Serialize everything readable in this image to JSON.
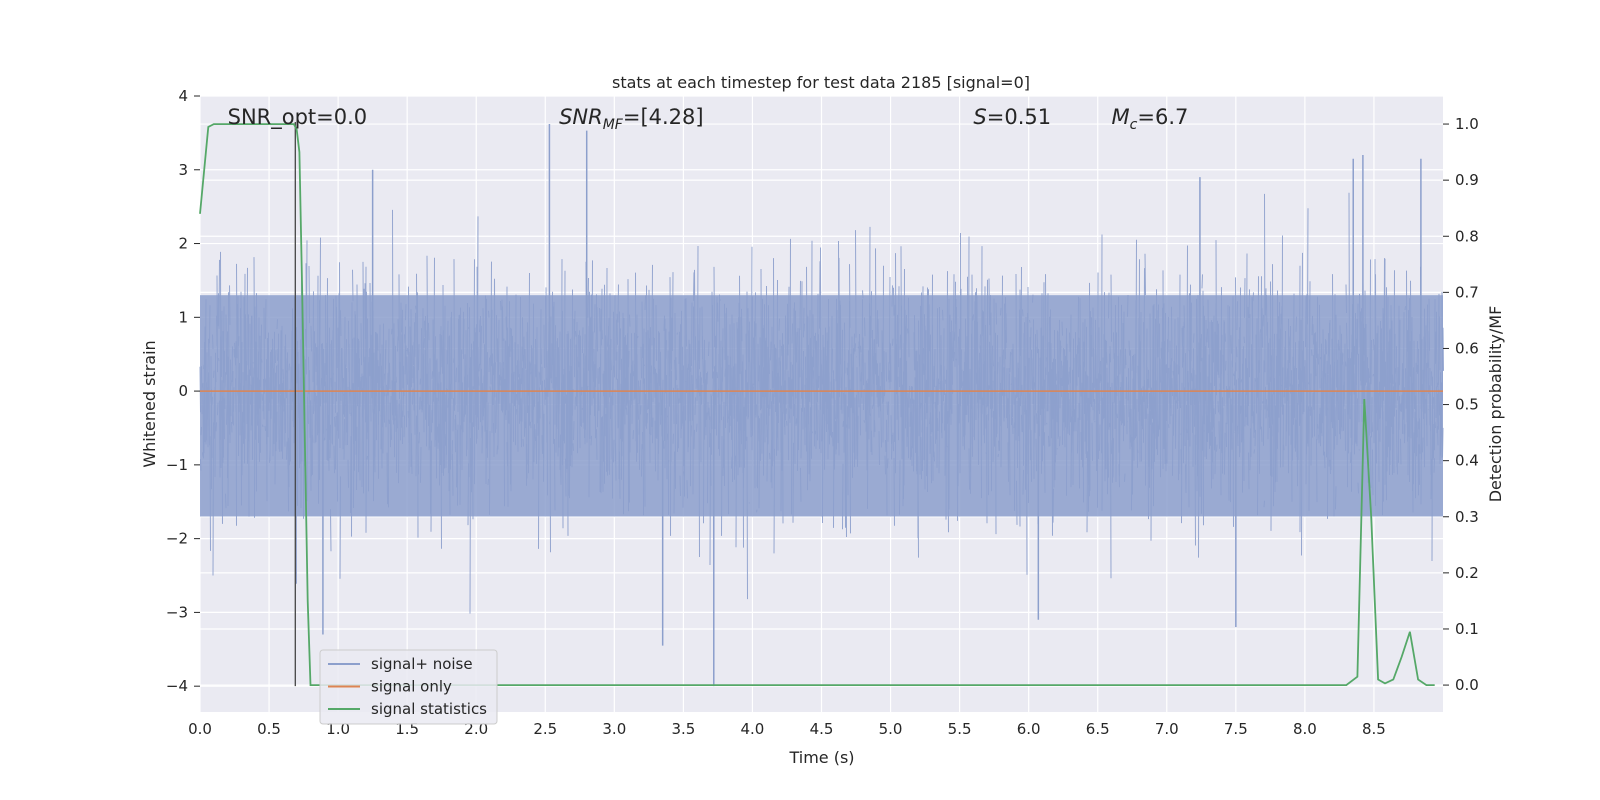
{
  "chart_data": {
    "type": "line",
    "title": "stats at each timestep for test data 2185 [signal=0]",
    "xlabel": "Time (s)",
    "ylabel": "Whitened strain",
    "y2label": "Detection probability/MF",
    "xlim": [
      0.0,
      9.0
    ],
    "ylim": [
      -4.35,
      4.0
    ],
    "y2lim": [
      -0.048,
      1.05
    ],
    "x_ticks": [
      "0.0",
      "0.5",
      "1.0",
      "1.5",
      "2.0",
      "2.5",
      "3.0",
      "3.5",
      "4.0",
      "4.5",
      "5.0",
      "5.5",
      "6.0",
      "6.5",
      "7.0",
      "7.5",
      "8.0",
      "8.5"
    ],
    "y_ticks": [
      "4",
      "3",
      "2",
      "1",
      "0",
      "−1",
      "−2",
      "−3",
      "−4"
    ],
    "y2_ticks": [
      "1.0",
      "0.9",
      "0.8",
      "0.7",
      "0.6",
      "0.5",
      "0.4",
      "0.3",
      "0.2",
      "0.1",
      "0.0"
    ],
    "grid": true,
    "legend_position": "lower-left",
    "annotations": [
      {
        "text": "SNR_opt=0.0",
        "x": 0.2
      },
      {
        "text": "SNR_MF=[4.28]",
        "x": 2.6
      },
      {
        "text": "S=0.51",
        "x": 5.6
      },
      {
        "text": "M_c=6.7",
        "x": 6.6
      }
    ],
    "vertical_marker_x": 0.69,
    "series": [
      {
        "name": "signal+ noise",
        "color": "#8c9fcc",
        "kind": "dense_noise",
        "x_range": [
          0.0,
          9.0
        ],
        "core_band": [
          -1.7,
          1.3
        ],
        "max_value": 3.62,
        "min_value": -4.0,
        "notable_peaks": [
          {
            "x": 2.53,
            "y": 3.62
          },
          {
            "x": 2.8,
            "y": 3.53
          },
          {
            "x": 8.42,
            "y": 3.2
          },
          {
            "x": 8.35,
            "y": 3.15
          },
          {
            "x": 8.84,
            "y": 3.15
          },
          {
            "x": 7.24,
            "y": 2.9
          },
          {
            "x": 1.25,
            "y": 3.0
          },
          {
            "x": 3.72,
            "y": -4.0
          },
          {
            "x": 3.35,
            "y": -3.45
          },
          {
            "x": 0.89,
            "y": -3.3
          },
          {
            "x": 7.5,
            "y": -3.2
          },
          {
            "x": 6.07,
            "y": -3.1
          }
        ]
      },
      {
        "name": "signal only",
        "color": "#dd8452",
        "x": [
          0.0,
          9.0
        ],
        "y": [
          0.0,
          0.0
        ]
      },
      {
        "name": "signal statistics",
        "color": "#55a868",
        "axis": "right",
        "x": [
          0.0,
          0.06,
          0.1,
          0.2,
          0.3,
          0.4,
          0.5,
          0.6,
          0.68,
          0.7,
          0.72,
          0.74,
          0.76,
          0.78,
          0.8,
          0.82,
          1.0,
          2.0,
          4.0,
          6.0,
          8.0,
          8.3,
          8.38,
          8.43,
          8.48,
          8.53,
          8.58,
          8.64,
          8.7,
          8.76,
          8.82,
          8.88,
          8.94
        ],
        "y": [
          0.84,
          0.995,
          1.0,
          1.0,
          1.0,
          1.0,
          1.0,
          1.0,
          1.0,
          0.99,
          0.95,
          0.7,
          0.42,
          0.15,
          0.0,
          0.0,
          0.0,
          0.0,
          0.0,
          0.0,
          0.0,
          0.0,
          0.015,
          0.51,
          0.3,
          0.01,
          0.003,
          0.01,
          0.05,
          0.095,
          0.01,
          0.0,
          0.0
        ]
      }
    ]
  }
}
